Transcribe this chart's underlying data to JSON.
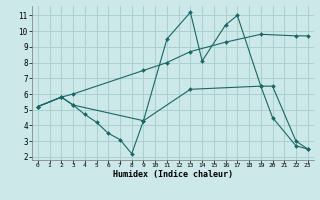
{
  "xlabel": "Humidex (Indice chaleur)",
  "background_color": "#cce8e8",
  "grid_color": "#aad0d0",
  "line_color": "#1a6666",
  "xlim": [
    -0.5,
    23.5
  ],
  "ylim": [
    1.8,
    11.6
  ],
  "yticks": [
    2,
    3,
    4,
    5,
    6,
    7,
    8,
    9,
    10,
    11
  ],
  "xticks": [
    0,
    1,
    2,
    3,
    4,
    5,
    6,
    7,
    8,
    9,
    10,
    11,
    12,
    13,
    14,
    15,
    16,
    17,
    18,
    19,
    20,
    21,
    22,
    23
  ],
  "lines": [
    {
      "x": [
        0,
        2,
        3,
        4,
        5,
        6,
        7,
        8,
        9,
        11,
        13,
        14,
        16,
        17,
        19,
        20,
        22,
        23
      ],
      "y": [
        5.2,
        5.8,
        5.3,
        4.7,
        4.2,
        3.5,
        3.1,
        2.2,
        4.3,
        9.5,
        11.2,
        8.1,
        10.4,
        11.0,
        6.5,
        4.5,
        2.7,
        2.5
      ]
    },
    {
      "x": [
        0,
        2,
        3,
        9,
        11,
        13,
        16,
        19,
        22,
        23
      ],
      "y": [
        5.2,
        5.8,
        6.0,
        7.5,
        8.0,
        8.7,
        9.3,
        9.8,
        9.7,
        9.7
      ]
    },
    {
      "x": [
        0,
        2,
        3,
        9,
        13,
        19,
        20,
        22,
        23
      ],
      "y": [
        5.2,
        5.8,
        5.3,
        4.3,
        6.3,
        6.5,
        6.5,
        3.0,
        2.5
      ]
    }
  ]
}
